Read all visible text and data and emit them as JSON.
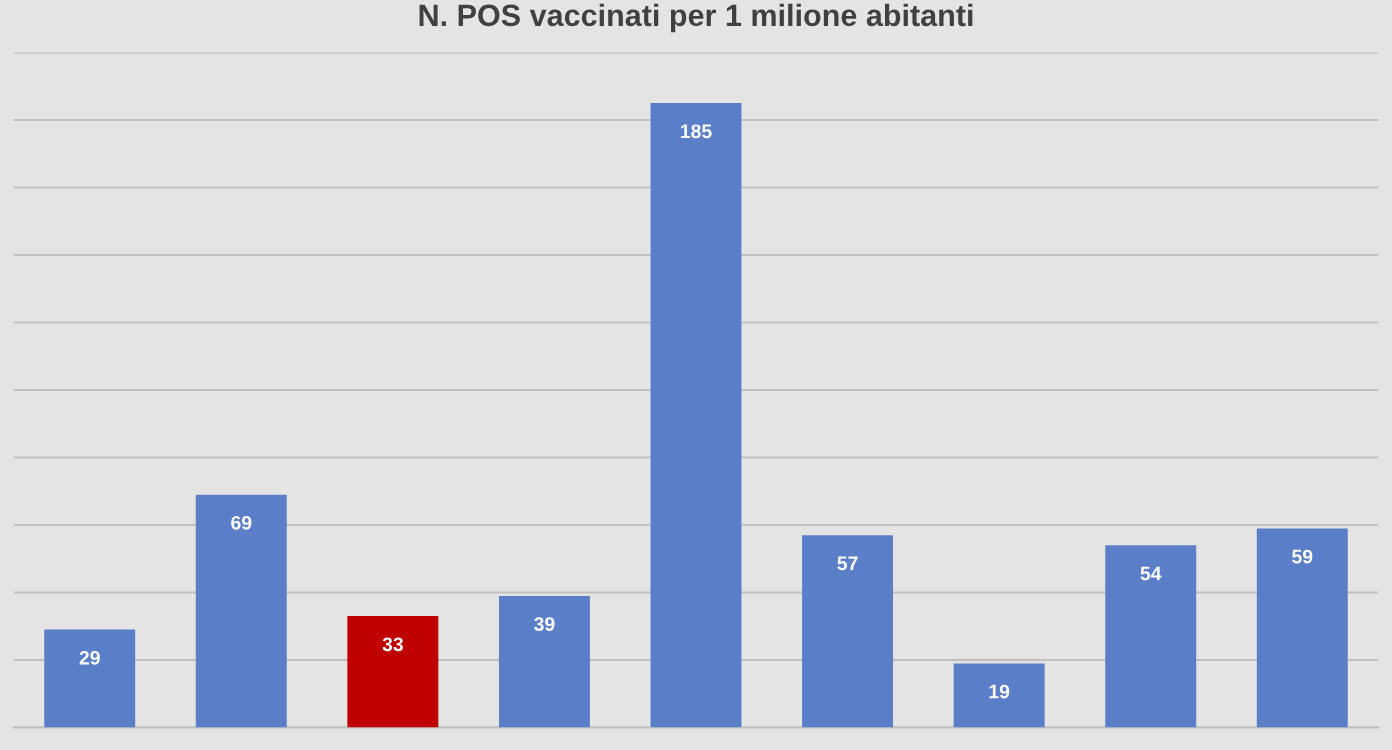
{
  "chart_data": {
    "type": "bar",
    "title": "N. POS vaccinati per 1 milione abitanti",
    "categories": [
      null,
      null,
      null,
      null,
      null,
      null,
      null,
      null,
      null
    ],
    "values": [
      29,
      69,
      33,
      39,
      185,
      57,
      19,
      54,
      59
    ],
    "colors": [
      "#5a7fc8",
      "#5a7fc8",
      "#c00000",
      "#5a7fc8",
      "#5a7fc8",
      "#5a7fc8",
      "#5a7fc8",
      "#5a7fc8",
      "#5a7fc8"
    ],
    "ylim": [
      0,
      200
    ],
    "yticks": [
      {
        "value": 0,
        "label": null
      },
      {
        "value": 20,
        "label": null
      },
      {
        "value": 40,
        "label": null
      },
      {
        "value": 60,
        "label": null
      },
      {
        "value": 80,
        "label": null
      },
      {
        "value": 100,
        "label": null
      },
      {
        "value": 120,
        "label": null
      },
      {
        "value": 140,
        "label": null
      },
      {
        "value": 160,
        "label": null
      },
      {
        "value": 180,
        "label": null
      },
      {
        "value": 200,
        "label": null
      }
    ],
    "data_labels": true,
    "grid": "y"
  }
}
